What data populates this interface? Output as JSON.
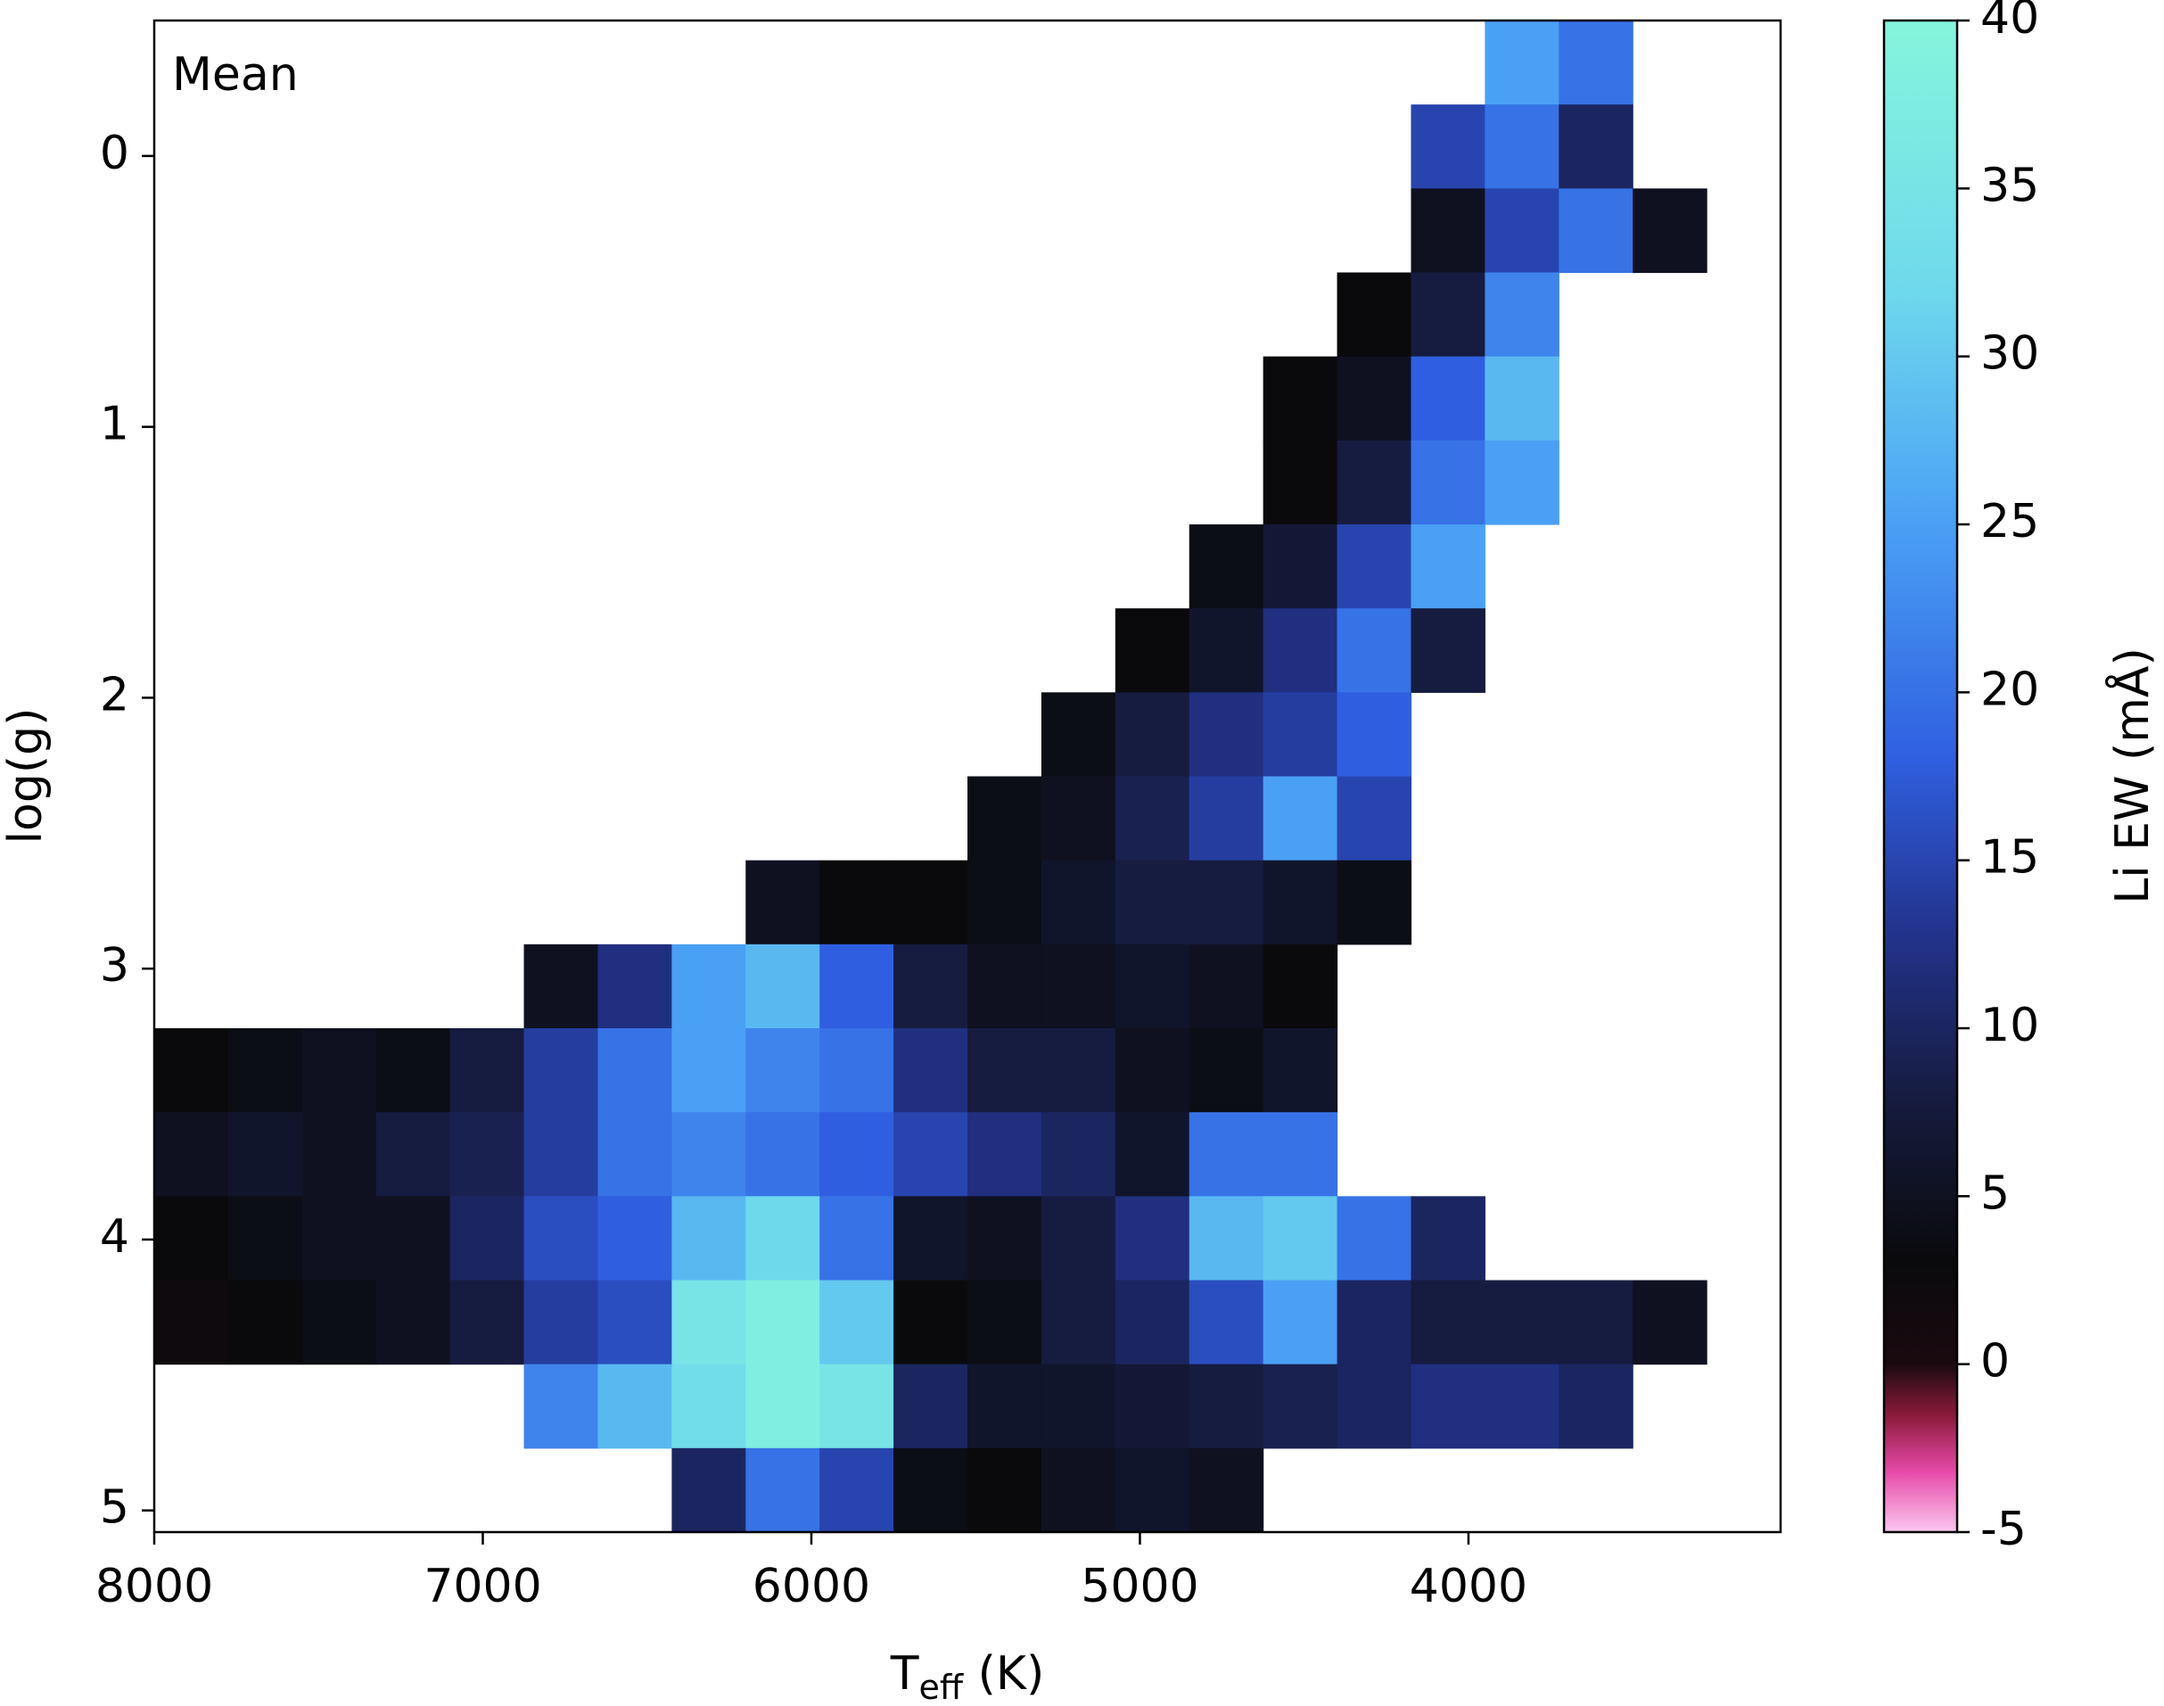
{
  "chart_data": {
    "type": "heatmap",
    "annotation": "Mean",
    "xlabel_parts": [
      "T",
      "eff",
      " (K)"
    ],
    "ylabel": "log(g)",
    "colorbar_label": "Li EW (mÅ)",
    "xlim": [
      8000,
      3050
    ],
    "xticks": [
      8000,
      7000,
      6000,
      5000,
      4000
    ],
    "ylim": [
      5.08,
      -0.5
    ],
    "yticks": [
      0,
      1,
      2,
      3,
      4,
      5
    ],
    "clim": [
      -5,
      40
    ],
    "cticks": [
      -5,
      0,
      5,
      10,
      15,
      20,
      25,
      30,
      35,
      40
    ],
    "colormap": [
      [
        -5,
        "#fbc8f0"
      ],
      [
        -3.2,
        "#e64aa8"
      ],
      [
        -1.5,
        "#8a1a3a"
      ],
      [
        0,
        "#1a0a10"
      ],
      [
        3,
        "#0a0a0c"
      ],
      [
        8,
        "#161c40"
      ],
      [
        13,
        "#23348f"
      ],
      [
        18,
        "#2f5fe0"
      ],
      [
        25,
        "#4aa0f5"
      ],
      [
        32,
        "#6fd9ec"
      ],
      [
        40,
        "#86f5dc"
      ]
    ],
    "x_bins": [
      8000,
      7775,
      7550,
      7325,
      7100,
      6875,
      6650,
      6425,
      6200,
      5975,
      5750,
      5525,
      5300,
      5075,
      4850,
      4625,
      4400,
      4175,
      3950,
      3725,
      3500,
      3275,
      3050
    ],
    "y_bins": [
      -0.5,
      -0.19,
      0.12,
      0.43,
      0.74,
      1.05,
      1.36,
      1.67,
      1.98,
      2.29,
      2.6,
      2.91,
      3.22,
      3.53,
      3.84,
      4.15,
      4.46,
      4.77,
      5.08
    ],
    "values": [
      [
        null,
        null,
        null,
        null,
        null,
        null,
        null,
        null,
        null,
        null,
        null,
        null,
        null,
        null,
        null,
        null,
        null,
        null,
        25,
        20,
        null,
        null
      ],
      [
        null,
        null,
        null,
        null,
        null,
        null,
        null,
        null,
        null,
        null,
        null,
        null,
        null,
        null,
        null,
        null,
        null,
        15,
        20,
        10,
        null,
        null
      ],
      [
        null,
        null,
        null,
        null,
        null,
        null,
        null,
        null,
        null,
        null,
        null,
        null,
        null,
        null,
        null,
        null,
        null,
        5,
        15,
        20,
        5,
        null
      ],
      [
        null,
        null,
        null,
        null,
        null,
        null,
        null,
        null,
        null,
        null,
        null,
        null,
        null,
        null,
        null,
        null,
        3,
        8,
        22,
        null,
        null,
        null
      ],
      [
        null,
        null,
        null,
        null,
        null,
        null,
        null,
        null,
        null,
        null,
        null,
        null,
        null,
        null,
        null,
        3,
        5,
        18,
        28,
        null,
        null,
        null
      ],
      [
        null,
        null,
        null,
        null,
        null,
        null,
        null,
        null,
        null,
        null,
        null,
        null,
        null,
        null,
        null,
        3,
        8,
        20,
        25,
        null,
        null,
        null
      ],
      [
        null,
        null,
        null,
        null,
        null,
        null,
        null,
        null,
        null,
        null,
        null,
        null,
        null,
        null,
        4,
        7,
        15,
        25,
        null,
        null,
        null,
        null
      ],
      [
        null,
        null,
        null,
        null,
        null,
        null,
        null,
        null,
        null,
        null,
        null,
        null,
        null,
        3,
        6,
        12,
        20,
        8,
        null,
        null,
        null,
        null
      ],
      [
        null,
        null,
        null,
        null,
        null,
        null,
        null,
        null,
        null,
        null,
        null,
        null,
        4,
        8,
        12,
        14,
        18,
        null,
        null,
        null,
        null,
        null
      ],
      [
        null,
        null,
        null,
        null,
        null,
        null,
        null,
        null,
        null,
        null,
        null,
        4,
        5,
        9,
        14,
        25,
        15,
        null,
        null,
        null,
        null,
        null
      ],
      [
        null,
        null,
        null,
        null,
        null,
        null,
        null,
        null,
        5,
        3,
        3,
        4,
        6,
        8,
        8,
        6,
        4,
        null,
        null,
        null,
        null,
        null
      ],
      [
        null,
        null,
        null,
        null,
        null,
        5,
        12,
        25,
        28,
        18,
        8,
        5,
        5,
        6,
        5,
        3,
        null,
        null,
        null,
        null,
        null,
        null
      ],
      [
        3,
        4,
        5,
        4,
        8,
        14,
        20,
        25,
        22,
        20,
        12,
        8,
        8,
        5,
        4,
        6,
        null,
        null,
        null,
        null,
        null,
        null
      ],
      [
        5,
        6,
        5,
        8,
        9,
        14,
        20,
        22,
        20,
        18,
        15,
        12,
        10,
        6,
        20,
        20,
        null,
        null,
        null,
        null,
        null,
        null
      ],
      [
        3,
        4,
        5,
        5,
        10,
        16,
        18,
        28,
        32,
        20,
        6,
        5,
        8,
        12,
        28,
        30,
        20,
        10,
        null,
        null,
        null,
        null
      ],
      [
        2,
        3,
        4,
        5,
        8,
        14,
        16,
        35,
        38,
        30,
        3,
        4,
        8,
        10,
        16,
        25,
        10,
        8,
        8,
        8,
        5,
        null
      ],
      [
        null,
        null,
        null,
        null,
        null,
        22,
        28,
        33,
        38,
        35,
        10,
        6,
        6,
        7,
        8,
        9,
        10,
        12,
        12,
        10,
        null,
        null
      ],
      [
        null,
        null,
        null,
        null,
        null,
        null,
        null,
        10,
        20,
        15,
        4,
        3,
        5,
        6,
        5,
        null,
        null,
        null,
        null,
        null,
        null,
        null
      ]
    ]
  }
}
